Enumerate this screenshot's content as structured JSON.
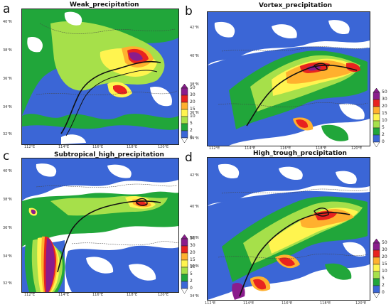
{
  "colorbar": {
    "levels": [
      "0",
      "2",
      "5",
      "10",
      "15",
      "20",
      "30",
      "50"
    ],
    "colors": [
      "#ffffff",
      "#3b66d6",
      "#21a63a",
      "#a6e04a",
      "#fff44f",
      "#ffb02e",
      "#e8231f",
      "#8a1c8c"
    ]
  },
  "panels": [
    {
      "letter": "a",
      "title": "Weak_precipitation",
      "lat_labels": [
        "40°N",
        "38°N",
        "36°N",
        "34°N",
        "32°N"
      ],
      "lon_labels": [
        "112°E",
        "114°E",
        "116°E",
        "118°E",
        "120°E"
      ]
    },
    {
      "letter": "b",
      "title": "Vortex_precipitation",
      "lat_labels": [
        "42°N",
        "40°N",
        "38°N",
        "36°N",
        "34°N"
      ],
      "lon_labels": [
        "112°E",
        "114°E",
        "116°E",
        "118°E",
        "120°E"
      ]
    },
    {
      "letter": "c",
      "title": "Subtropical_high_precipitation",
      "lat_labels": [
        "40°N",
        "38°N",
        "36°N",
        "34°N",
        "32°N"
      ],
      "lon_labels": [
        "112°E",
        "114°E",
        "116°E",
        "118°E",
        "120°E"
      ]
    },
    {
      "letter": "d",
      "title": "High_trough_precipitation",
      "lat_labels": [
        "42°N",
        "40°N",
        "38°N",
        "36°N",
        "34°N"
      ],
      "lon_labels": [
        "112°E",
        "114°E",
        "116°E",
        "118°E",
        "120°E"
      ]
    }
  ]
}
